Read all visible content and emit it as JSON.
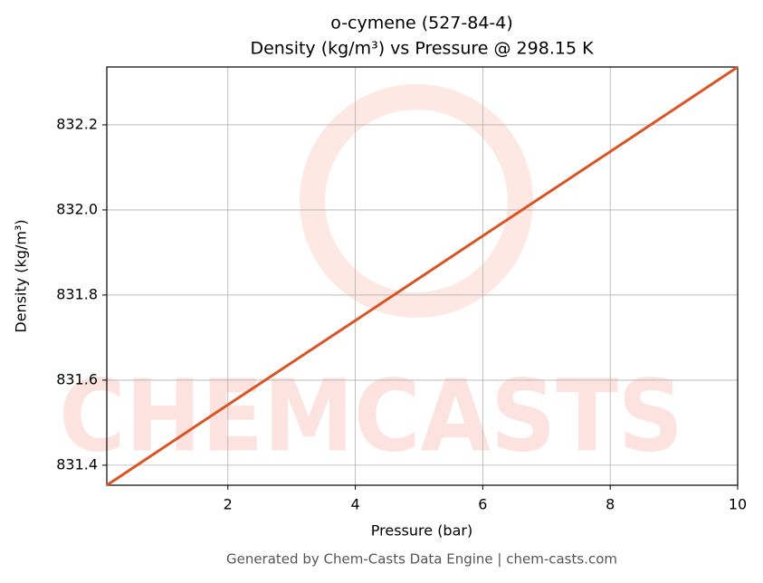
{
  "chart_data": {
    "type": "line",
    "title": "o-cymene (527-84-4)",
    "subtitle": "Density (kg/m³) vs Pressure @ 298.15 K",
    "x_label": "Pressure (bar)",
    "y_label": "Density (kg/m³)",
    "footer": "Generated by Chem-Casts Data Engine | chem-casts.com",
    "watermark": "CHEMCASTS",
    "x": [
      0.1,
      2,
      4,
      6,
      8,
      10
    ],
    "series": [
      {
        "name": "Density",
        "color": "#d95525",
        "values": [
          831.353,
          831.542,
          831.74,
          831.939,
          832.137,
          832.336
        ]
      }
    ],
    "xlim": [
      0.1,
      10
    ],
    "xticks": [
      2,
      4,
      6,
      8,
      10
    ],
    "ylim": [
      831.353,
      832.336
    ],
    "yticks": [
      {
        "value": 831.4,
        "label": "831.4"
      },
      {
        "value": 831.6,
        "label": "831.6"
      },
      {
        "value": 831.8,
        "label": "831.8"
      },
      {
        "value": 832.0,
        "label": "832.0"
      },
      {
        "value": 832.2,
        "label": "832.2"
      }
    ],
    "grid": true
  }
}
